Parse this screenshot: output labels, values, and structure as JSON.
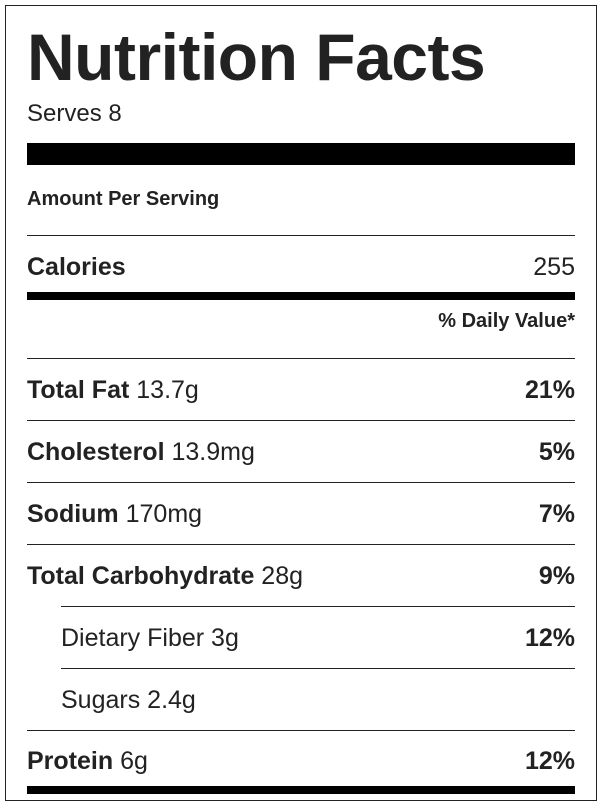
{
  "title": "Nutrition Facts",
  "serves": "Serves 8",
  "amount_per_serving": "Amount Per Serving",
  "calories": {
    "label": "Calories",
    "value": "255"
  },
  "daily_value_header": "% Daily Value*",
  "nutrients": [
    {
      "name": "Total Fat",
      "amount": "13.7g",
      "percent": "21%"
    },
    {
      "name": "Cholesterol",
      "amount": "13.9mg",
      "percent": "5%"
    },
    {
      "name": "Sodium",
      "amount": "170mg",
      "percent": "7%"
    },
    {
      "name": "Total Carbohydrate",
      "amount": "28g",
      "percent": "9%"
    },
    {
      "name": "Dietary Fiber",
      "amount": "3g",
      "percent": "12%"
    },
    {
      "name": "Sugars",
      "amount": "2.4g",
      "percent": ""
    },
    {
      "name": "Protein",
      "amount": "6g",
      "percent": "12%"
    }
  ]
}
